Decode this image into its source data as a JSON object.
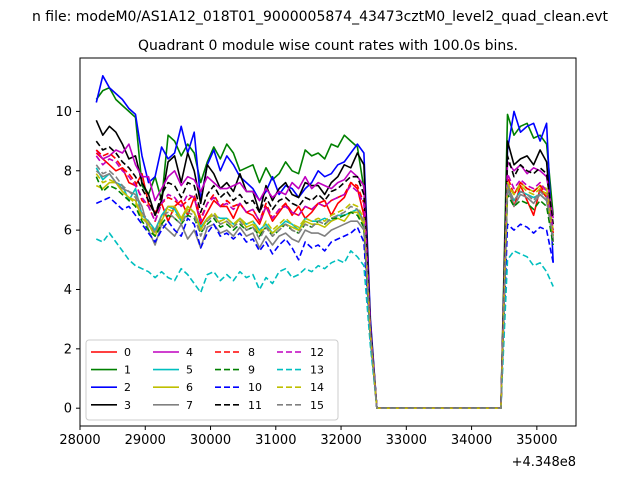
{
  "suptitle": "n file: modeM0/AS1A12_018T01_9000005874_43473cztM0_level2_quad_clean.evt",
  "chart_data": {
    "type": "line",
    "title": "Quadrant 0 module wise count rates with 100.0s bins.",
    "xlabel": "",
    "ylabel": "",
    "x_offset_label": "+4.348e8",
    "xlim": [
      28000,
      35600
    ],
    "ylim": [
      -0.6,
      11.8
    ],
    "xticks": [
      28000,
      29000,
      30000,
      31000,
      32000,
      33000,
      34000,
      35000
    ],
    "yticks": [
      0,
      2,
      4,
      6,
      8,
      10
    ],
    "grid": false,
    "legend_position": "lower-left",
    "legend_columns": 4,
    "x": [
      28250,
      28350,
      28450,
      28550,
      28650,
      28750,
      28850,
      28950,
      29050,
      29150,
      29250,
      29350,
      29450,
      29550,
      29650,
      29750,
      29850,
      29950,
      30050,
      30150,
      30250,
      30350,
      30450,
      30550,
      30650,
      30750,
      30850,
      30950,
      31050,
      31150,
      31250,
      31350,
      31450,
      31550,
      31650,
      31750,
      31850,
      31950,
      32050,
      32150,
      32250,
      32350,
      32450,
      32550,
      32650,
      34350,
      34450,
      34550,
      34650,
      34750,
      34850,
      34950,
      35050,
      35150,
      35250
    ],
    "series": [
      {
        "name": "0",
        "color": "#ff0000",
        "dash": "solid",
        "values": [
          8.6,
          8.4,
          8.2,
          8.0,
          8.1,
          7.6,
          7.5,
          7.9,
          6.9,
          6.6,
          6.9,
          6.3,
          6.8,
          7.0,
          6.5,
          7.1,
          6.2,
          6.6,
          7.0,
          6.8,
          6.8,
          6.4,
          6.9,
          6.6,
          6.5,
          6.2,
          6.8,
          6.3,
          6.6,
          6.9,
          6.5,
          6.8,
          6.4,
          6.6,
          6.9,
          7.0,
          6.5,
          6.9,
          7.1,
          7.6,
          7.4,
          6.5,
          2.5,
          0,
          0,
          0,
          0,
          7.6,
          6.8,
          7.5,
          7.0,
          6.5,
          7.4,
          7.1,
          5.8
        ]
      },
      {
        "name": "1",
        "color": "#008000",
        "dash": "solid",
        "values": [
          10.4,
          10.7,
          10.8,
          10.4,
          10.2,
          10.0,
          9.8,
          7.5,
          7.2,
          7.8,
          7.0,
          9.2,
          9.0,
          8.5,
          8.9,
          8.6,
          7.6,
          8.3,
          8.8,
          8.4,
          8.9,
          8.6,
          8.0,
          8.1,
          8.2,
          7.6,
          8.1,
          7.7,
          7.9,
          8.3,
          8.0,
          7.9,
          8.7,
          8.5,
          8.6,
          8.4,
          8.9,
          8.8,
          9.2,
          9.0,
          8.8,
          7.4,
          2.9,
          0,
          0,
          0,
          0,
          9.9,
          9.2,
          9.5,
          9.6,
          9.1,
          9.2,
          8.9,
          6.5
        ]
      },
      {
        "name": "2",
        "color": "#0000ff",
        "dash": "solid",
        "values": [
          10.3,
          11.2,
          10.8,
          10.6,
          10.4,
          10.1,
          9.9,
          8.5,
          7.6,
          7.8,
          8.8,
          8.4,
          8.6,
          9.5,
          8.6,
          9.3,
          7.0,
          8.2,
          8.7,
          8.0,
          8.5,
          8.2,
          7.8,
          7.6,
          7.4,
          7.0,
          7.3,
          7.8,
          7.2,
          7.5,
          7.4,
          7.1,
          7.4,
          7.6,
          8.0,
          7.8,
          7.9,
          8.2,
          8.3,
          8.6,
          8.9,
          8.6,
          3.0,
          0,
          0,
          0,
          0,
          8.7,
          10.0,
          9.3,
          9.5,
          9.6,
          9.0,
          9.6,
          4.9
        ]
      },
      {
        "name": "3",
        "color": "#000000",
        "dash": "solid",
        "values": [
          9.7,
          9.2,
          9.5,
          9.3,
          8.9,
          8.4,
          8.5,
          7.6,
          7.2,
          6.5,
          7.0,
          8.3,
          8.5,
          7.6,
          8.6,
          8.0,
          6.9,
          8.2,
          7.9,
          7.4,
          7.6,
          7.3,
          7.9,
          7.3,
          7.3,
          6.6,
          7.5,
          7.0,
          7.4,
          7.6,
          7.2,
          7.1,
          7.6,
          7.5,
          7.5,
          7.2,
          7.6,
          7.8,
          8.2,
          8.1,
          8.6,
          8.2,
          2.8,
          0,
          0,
          0,
          0,
          9.0,
          8.2,
          8.4,
          8.5,
          8.2,
          8.7,
          8.3,
          5.6
        ]
      },
      {
        "name": "4",
        "color": "#bf00bf",
        "dash": "solid",
        "values": [
          8.7,
          8.4,
          8.5,
          8.7,
          8.6,
          8.9,
          8.2,
          7.8,
          7.8,
          7.0,
          7.4,
          7.8,
          8.0,
          7.5,
          7.8,
          7.7,
          7.3,
          7.8,
          7.6,
          7.4,
          7.4,
          7.5,
          7.6,
          7.3,
          7.3,
          7.0,
          7.4,
          7.1,
          7.3,
          7.2,
          7.6,
          7.4,
          7.8,
          7.4,
          7.6,
          7.5,
          7.4,
          7.6,
          7.7,
          8.0,
          7.8,
          7.5,
          2.7,
          0,
          0,
          0,
          0,
          8.3,
          8.0,
          8.2,
          7.9,
          8.1,
          8.0,
          7.8,
          6.4
        ]
      },
      {
        "name": "5",
        "color": "#00bfbf",
        "dash": "solid",
        "values": [
          8.1,
          7.7,
          7.9,
          7.6,
          7.5,
          7.0,
          7.4,
          6.5,
          6.3,
          6.0,
          6.5,
          6.8,
          6.7,
          6.3,
          6.8,
          6.6,
          6.1,
          6.4,
          6.5,
          6.4,
          6.4,
          6.2,
          6.4,
          6.2,
          6.3,
          6.0,
          6.2,
          5.9,
          6.1,
          6.3,
          6.2,
          6.0,
          6.4,
          6.3,
          6.3,
          6.4,
          6.3,
          6.5,
          6.5,
          6.6,
          6.7,
          6.3,
          2.5,
          0,
          0,
          0,
          0,
          7.4,
          7.0,
          7.3,
          7.2,
          7.1,
          7.2,
          7.0,
          5.8
        ]
      },
      {
        "name": "6",
        "color": "#bfbf00",
        "dash": "solid",
        "values": [
          7.5,
          7.4,
          7.6,
          7.6,
          7.3,
          7.1,
          7.0,
          6.4,
          6.2,
          5.8,
          6.3,
          6.8,
          6.8,
          6.4,
          6.8,
          6.6,
          6.0,
          6.4,
          6.5,
          6.2,
          6.3,
          6.1,
          6.4,
          6.1,
          6.2,
          5.9,
          6.1,
          5.9,
          6.1,
          6.2,
          6.1,
          6.0,
          6.3,
          6.2,
          6.2,
          6.1,
          6.3,
          6.4,
          6.3,
          6.6,
          6.6,
          6.2,
          2.4,
          0,
          0,
          0,
          0,
          7.5,
          7.2,
          7.6,
          7.4,
          7.3,
          7.5,
          7.4,
          6.0
        ]
      },
      {
        "name": "7",
        "color": "#808080",
        "dash": "solid",
        "values": [
          8.0,
          7.8,
          7.9,
          7.6,
          7.4,
          7.3,
          7.2,
          6.8,
          6.0,
          5.5,
          6.2,
          6.0,
          5.8,
          6.2,
          5.7,
          6.0,
          5.4,
          6.1,
          6.2,
          5.9,
          6.0,
          5.8,
          6.1,
          5.8,
          5.9,
          5.4,
          5.8,
          5.5,
          5.8,
          5.9,
          5.7,
          5.6,
          6.0,
          5.9,
          5.9,
          5.8,
          6.0,
          6.1,
          6.2,
          6.3,
          6.3,
          6.0,
          2.4,
          0,
          0,
          0,
          0,
          7.4,
          6.8,
          7.2,
          7.1,
          6.9,
          7.2,
          7.0,
          5.6
        ]
      },
      {
        "name": "8",
        "color": "#ff0000",
        "dash": "dashed",
        "values": [
          8.7,
          8.5,
          8.6,
          8.4,
          8.1,
          7.9,
          7.6,
          7.0,
          6.8,
          6.3,
          6.9,
          7.1,
          7.0,
          6.8,
          7.0,
          7.2,
          6.4,
          6.9,
          7.2,
          6.8,
          7.0,
          6.8,
          6.9,
          6.6,
          6.7,
          6.3,
          6.9,
          6.4,
          6.7,
          6.9,
          6.6,
          6.5,
          6.8,
          6.7,
          6.9,
          6.8,
          7.0,
          7.1,
          7.2,
          7.6,
          7.5,
          6.9,
          2.6,
          0,
          0,
          0,
          0,
          7.8,
          7.2,
          7.6,
          7.4,
          7.3,
          7.5,
          7.2,
          5.9
        ]
      },
      {
        "name": "9",
        "color": "#008000",
        "dash": "dashed",
        "values": [
          7.8,
          7.3,
          7.5,
          7.4,
          7.2,
          7.0,
          6.8,
          6.3,
          6.0,
          5.8,
          6.2,
          6.5,
          6.4,
          6.2,
          6.5,
          6.4,
          5.9,
          6.2,
          6.4,
          6.1,
          6.2,
          6.0,
          6.2,
          6.0,
          6.1,
          5.8,
          6.1,
          5.8,
          6.0,
          6.2,
          6.0,
          5.9,
          6.2,
          6.1,
          6.3,
          6.2,
          6.4,
          6.4,
          6.5,
          6.6,
          6.5,
          6.1,
          2.4,
          0,
          0,
          0,
          0,
          7.2,
          6.8,
          7.0,
          6.9,
          6.7,
          7.0,
          6.8,
          5.5
        ]
      },
      {
        "name": "10",
        "color": "#0000ff",
        "dash": "dashed",
        "values": [
          6.9,
          7.0,
          7.1,
          6.9,
          6.7,
          6.8,
          6.5,
          6.2,
          5.9,
          5.6,
          6.0,
          6.3,
          6.0,
          5.8,
          6.4,
          6.2,
          5.4,
          5.9,
          6.2,
          5.8,
          5.9,
          5.7,
          5.9,
          5.6,
          5.7,
          5.3,
          5.6,
          5.2,
          5.5,
          5.7,
          5.4,
          5.0,
          5.6,
          5.4,
          5.5,
          5.3,
          5.6,
          5.7,
          5.8,
          5.9,
          6.1,
          5.6,
          2.3,
          0,
          0,
          0,
          0,
          6.2,
          6.0,
          6.2,
          6.1,
          5.9,
          6.1,
          6.0,
          4.9
        ]
      },
      {
        "name": "11",
        "color": "#000000",
        "dash": "dashed",
        "values": [
          9.0,
          8.7,
          8.8,
          8.6,
          8.3,
          8.1,
          7.8,
          7.4,
          7.0,
          6.5,
          7.2,
          7.6,
          7.5,
          7.1,
          7.6,
          7.5,
          6.6,
          7.2,
          7.5,
          7.1,
          7.3,
          7.0,
          7.2,
          6.9,
          7.0,
          6.6,
          7.1,
          6.7,
          7.0,
          7.1,
          6.9,
          6.8,
          7.1,
          7.0,
          7.2,
          7.0,
          7.3,
          7.4,
          7.6,
          7.8,
          7.8,
          7.2,
          2.7,
          0,
          0,
          0,
          0,
          8.5,
          7.8,
          8.2,
          8.0,
          7.9,
          8.1,
          7.9,
          6.2
        ]
      },
      {
        "name": "12",
        "color": "#bf00bf",
        "dash": "dashed",
        "values": [
          8.5,
          8.2,
          8.4,
          8.3,
          8.0,
          7.8,
          7.5,
          7.1,
          6.8,
          6.3,
          6.9,
          7.2,
          7.1,
          6.8,
          7.2,
          7.1,
          6.3,
          6.9,
          7.1,
          6.8,
          6.9,
          6.7,
          6.9,
          6.6,
          6.7,
          6.3,
          6.8,
          6.4,
          6.7,
          6.8,
          6.6,
          6.5,
          6.8,
          6.7,
          6.9,
          6.8,
          7.0,
          7.1,
          7.2,
          7.5,
          7.3,
          6.9,
          2.6,
          0,
          0,
          0,
          0,
          7.9,
          7.4,
          7.7,
          7.5,
          7.4,
          7.6,
          7.3,
          6.0
        ]
      },
      {
        "name": "13",
        "color": "#00bfbf",
        "dash": "dashed",
        "values": [
          5.7,
          5.6,
          5.9,
          5.6,
          5.3,
          5.0,
          4.8,
          4.7,
          4.6,
          4.4,
          4.6,
          4.4,
          4.3,
          4.7,
          4.5,
          4.2,
          3.9,
          4.5,
          4.6,
          4.3,
          4.5,
          4.3,
          4.6,
          4.4,
          4.5,
          4.0,
          4.4,
          4.2,
          4.6,
          4.7,
          4.4,
          4.5,
          4.7,
          4.6,
          4.8,
          4.7,
          4.9,
          5.0,
          4.9,
          5.3,
          5.1,
          4.8,
          2.1,
          0,
          0,
          0,
          0,
          5.0,
          5.3,
          5.2,
          5.1,
          4.8,
          4.9,
          4.6,
          4.1
        ]
      },
      {
        "name": "14",
        "color": "#bfbf00",
        "dash": "dashed",
        "values": [
          7.9,
          7.6,
          7.7,
          7.6,
          7.3,
          7.1,
          6.9,
          6.5,
          6.2,
          5.9,
          6.4,
          6.7,
          6.6,
          6.3,
          6.7,
          6.6,
          6.0,
          6.4,
          6.6,
          6.3,
          6.4,
          6.2,
          6.4,
          6.2,
          6.3,
          5.9,
          6.3,
          6.0,
          6.2,
          6.4,
          6.2,
          6.1,
          6.4,
          6.3,
          6.4,
          6.3,
          6.5,
          6.6,
          6.7,
          6.9,
          6.8,
          6.4,
          2.5,
          0,
          0,
          0,
          0,
          7.6,
          7.2,
          7.5,
          7.3,
          7.2,
          7.4,
          7.2,
          5.8
        ]
      },
      {
        "name": "15",
        "color": "#808080",
        "dash": "dashed",
        "values": [
          8.2,
          7.9,
          8.0,
          7.8,
          7.5,
          7.3,
          7.1,
          6.6,
          6.3,
          5.9,
          6.5,
          6.6,
          6.4,
          6.2,
          6.6,
          6.5,
          5.8,
          6.3,
          6.5,
          6.2,
          6.3,
          6.1,
          6.3,
          6.0,
          6.1,
          5.7,
          6.1,
          5.8,
          6.0,
          6.2,
          6.0,
          5.9,
          6.2,
          6.1,
          6.3,
          6.2,
          6.4,
          6.5,
          6.6,
          6.8,
          6.7,
          6.3,
          2.5,
          0,
          0,
          0,
          0,
          7.5,
          7.0,
          7.3,
          7.2,
          7.0,
          7.3,
          7.1,
          5.7
        ]
      }
    ]
  }
}
